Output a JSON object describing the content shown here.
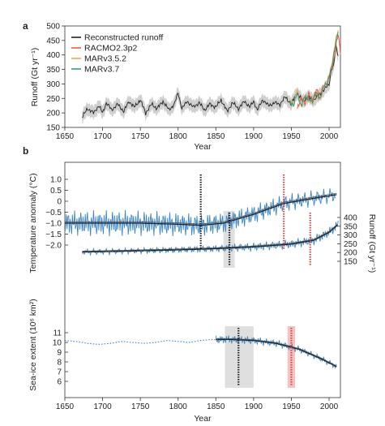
{
  "chart_data": [
    {
      "panel_label": "a",
      "type": "line",
      "xlabel": "Year",
      "ylabel": "Runoff (Gt yr⁻¹)",
      "xlim": [
        1650,
        2015
      ],
      "ylim": [
        150,
        500
      ],
      "xticks": [
        1650,
        1700,
        1750,
        1800,
        1850,
        1900,
        1950,
        2000
      ],
      "yticks": [
        150,
        200,
        250,
        300,
        350,
        400,
        450,
        500
      ],
      "legend_position": "top-left",
      "series": [
        {
          "name": "Reconstructed runoff",
          "color": "#222222",
          "band_color": "#bdbdbd",
          "x": [
            1673,
            1680,
            1688,
            1695,
            1700,
            1705,
            1712,
            1720,
            1728,
            1735,
            1742,
            1750,
            1757,
            1765,
            1772,
            1780,
            1788,
            1795,
            1800,
            1805,
            1812,
            1820,
            1828,
            1835,
            1842,
            1850,
            1857,
            1865,
            1872,
            1880,
            1888,
            1895,
            1900,
            1905,
            1912,
            1920,
            1928,
            1935,
            1942,
            1950,
            1957,
            1965,
            1972,
            1980,
            1988,
            1995,
            2000,
            2003,
            2006,
            2009,
            2012
          ],
          "y": [
            185,
            215,
            200,
            225,
            200,
            235,
            210,
            230,
            205,
            240,
            220,
            245,
            200,
            230,
            215,
            240,
            210,
            230,
            270,
            215,
            240,
            220,
            235,
            210,
            230,
            220,
            245,
            205,
            235,
            215,
            240,
            220,
            240,
            210,
            245,
            225,
            235,
            230,
            255,
            230,
            270,
            240,
            255,
            245,
            265,
            285,
            300,
            350,
            360,
            430,
            400
          ]
        },
        {
          "name": "RACMO2.3p2",
          "color": "#e8623c",
          "x": [
            1958,
            1963,
            1968,
            1973,
            1978,
            1983,
            1988,
            1993,
            1998,
            2003,
            2006,
            2009,
            2012,
            2015
          ],
          "y": [
            215,
            255,
            230,
            270,
            240,
            285,
            260,
            300,
            300,
            350,
            380,
            430,
            470,
            410
          ]
        },
        {
          "name": "MARv3.5.2",
          "color": "#f5a44c",
          "x": [
            1948,
            1953,
            1958,
            1963,
            1968,
            1973,
            1978,
            1983,
            1988,
            1993,
            1998,
            2003,
            2008,
            2012
          ],
          "y": [
            245,
            230,
            280,
            220,
            260,
            245,
            230,
            270,
            240,
            290,
            310,
            360,
            440,
            485
          ]
        },
        {
          "name": "MARv3.7",
          "color": "#3a9a80",
          "x": [
            1948,
            1953,
            1958,
            1963,
            1968,
            1973,
            1978,
            1983,
            1988,
            1993,
            1998,
            2003,
            2008,
            2012
          ],
          "y": [
            240,
            225,
            270,
            225,
            255,
            250,
            235,
            275,
            245,
            295,
            305,
            355,
            430,
            480
          ]
        }
      ]
    },
    {
      "panel_label": "b",
      "type": "line",
      "xlabel": "Year",
      "xlim": [
        1650,
        2015
      ],
      "xticks": [
        1650,
        1700,
        1750,
        1800,
        1850,
        1900,
        1950,
        2000
      ],
      "axes": [
        {
          "ylabel": "Temperature anomaly (°C)",
          "side": "left",
          "ylim": [
            -2.0,
            1.0
          ],
          "yticks": [
            "1.0",
            "0.5",
            "0",
            "−0.5",
            "−1.0",
            "−1.5",
            "−2.0"
          ],
          "ytick_values": [
            1.0,
            0.5,
            0,
            -0.5,
            -1.0,
            -1.5,
            -2.0
          ]
        },
        {
          "ylabel": "Runoff (Gt yr⁻¹)",
          "side": "right",
          "ylim": [
            150,
            400
          ],
          "yticks": [
            "400",
            "350",
            "300",
            "250",
            "200",
            "150"
          ],
          "ytick_values": [
            400,
            350,
            300,
            250,
            200,
            150
          ]
        },
        {
          "ylabel": "Sea-ice extent (10⁶ km²)",
          "side": "left",
          "ylim": [
            6,
            11
          ],
          "yticks": [
            "11",
            "10",
            "9",
            "8",
            "7",
            "6"
          ],
          "ytick_values": [
            11,
            10,
            9,
            8,
            7,
            6
          ]
        }
      ],
      "series": [
        {
          "role": "temperature-trend",
          "axis": 0,
          "color": "#222222",
          "x": [
            1650,
            1700,
            1750,
            1800,
            1830,
            1860,
            1900,
            1940,
            2000,
            2010
          ],
          "y": [
            -1.0,
            -1.0,
            -1.0,
            -1.05,
            -1.1,
            -1.0,
            -0.6,
            -0.1,
            0.25,
            0.3
          ]
        },
        {
          "role": "runoff-trend",
          "axis": 1,
          "color": "#222222",
          "x": [
            1673,
            1700,
            1750,
            1800,
            1850,
            1900,
            1950,
            1980,
            2000,
            2012
          ],
          "y": [
            203,
            205,
            210,
            215,
            222,
            232,
            248,
            270,
            315,
            360
          ]
        },
        {
          "role": "sea-ice-trend",
          "axis": 2,
          "color": "#222222",
          "x": [
            1850,
            1870,
            1900,
            1930,
            1960,
            1990,
            2010
          ],
          "y": [
            10.3,
            10.3,
            10.2,
            9.9,
            9.3,
            8.3,
            7.5
          ]
        },
        {
          "role": "sea-ice-early-estimate",
          "axis": 2,
          "color": "#3a86c8",
          "dashed": true,
          "x": [
            1650,
            1665,
            1680,
            1695,
            1710,
            1725,
            1740,
            1755,
            1770,
            1785,
            1800,
            1815,
            1830,
            1845,
            1860
          ],
          "y": [
            10.2,
            10.1,
            9.9,
            9.8,
            9.9,
            10.1,
            10.0,
            9.9,
            10.0,
            10.2,
            10.1,
            10.0,
            10.2,
            10.3,
            10.2
          ]
        }
      ],
      "change_points": [
        {
          "axis": 0,
          "year": 1830,
          "color": "#222222"
        },
        {
          "axis": 0,
          "year": 1940,
          "color": "#d94848"
        },
        {
          "axis": 1,
          "year": 1868,
          "color": "#222222",
          "band": [
            1860,
            1875
          ]
        },
        {
          "axis": 1,
          "year": 1975,
          "color": "#d94848"
        },
        {
          "axis": 2,
          "year": 1880,
          "color": "#222222",
          "band": [
            1862,
            1900
          ]
        },
        {
          "axis": 2,
          "year": 1950,
          "color": "#d94848",
          "band": [
            1945,
            1955
          ]
        }
      ]
    }
  ]
}
